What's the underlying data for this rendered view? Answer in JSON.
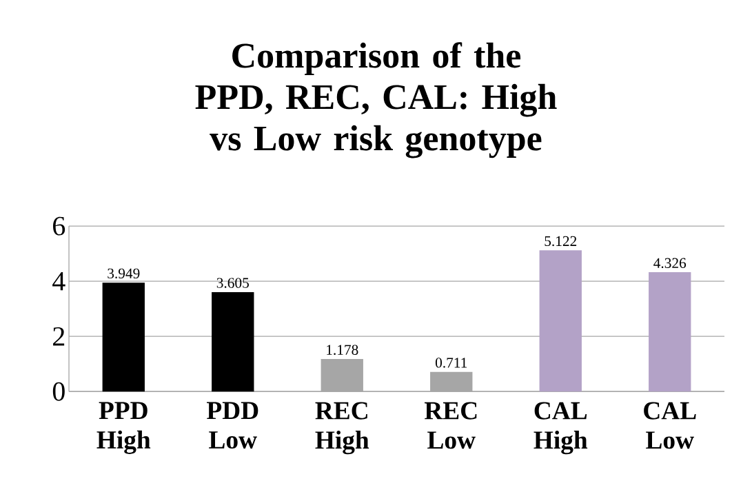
{
  "chart_data": {
    "type": "bar",
    "title": "Comparison of the PPD, REC, CAL: High vs Low risk genotype",
    "categories": [
      "PPD High",
      "PDD Low",
      "REC High",
      "REC Low",
      "CAL High",
      "CAL Low"
    ],
    "values": [
      3.949,
      3.605,
      1.178,
      0.711,
      5.122,
      4.326
    ],
    "colors": [
      "#000000",
      "#000000",
      "#a6a6a6",
      "#a6a6a6",
      "#b3a2c7",
      "#b3a2c7"
    ],
    "ylim": [
      0,
      6
    ],
    "yticks": [
      0,
      2,
      4,
      6
    ],
    "grid": "y",
    "data_labels": true
  }
}
